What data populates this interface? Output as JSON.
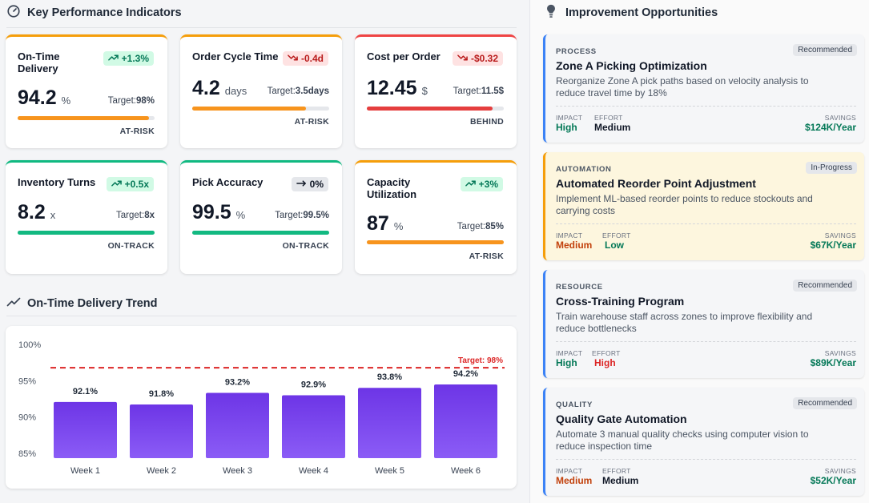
{
  "kpi_section": {
    "title": "Key Performance Indicators"
  },
  "kpis": [
    {
      "name": "On-Time Delivery",
      "badge": "+1.3%",
      "trend": "up",
      "value": "94.2",
      "unit": "%",
      "target_label": "Target:",
      "target": "98%",
      "status": "AT-RISK",
      "progress": 0.96,
      "color": "#f59e0b",
      "bar_color": "#f7941d"
    },
    {
      "name": "Order Cycle Time",
      "badge": "-0.4d",
      "trend": "down",
      "value": "4.2",
      "unit": "days",
      "target_label": "Target:",
      "target": "3.5days",
      "status": "AT-RISK",
      "progress": 0.83,
      "color": "#f59e0b",
      "bar_color": "#f7941d"
    },
    {
      "name": "Cost per Order",
      "badge": "-$0.32",
      "trend": "down",
      "value": "12.45",
      "unit": "$",
      "target_label": "Target:",
      "target": "11.5$",
      "status": "BEHIND",
      "progress": 0.92,
      "color": "#ef4444",
      "bar_color": "#e53e3e"
    },
    {
      "name": "Inventory Turns",
      "badge": "+0.5x",
      "trend": "up",
      "value": "8.2",
      "unit": "x",
      "target_label": "Target:",
      "target": "8x",
      "status": "ON-TRACK",
      "progress": 1.0,
      "color": "#10b981",
      "bar_color": "#12b981"
    },
    {
      "name": "Pick Accuracy",
      "badge": "0%",
      "trend": "flat",
      "value": "99.5",
      "unit": "%",
      "target_label": "Target:",
      "target": "99.5%",
      "status": "ON-TRACK",
      "progress": 1.0,
      "color": "#10b981",
      "bar_color": "#12b981"
    },
    {
      "name": "Capacity Utilization",
      "badge": "+3%",
      "trend": "up",
      "value": "87",
      "unit": "%",
      "target_label": "Target:",
      "target": "85%",
      "status": "AT-RISK",
      "progress": 1.0,
      "color": "#f59e0b",
      "bar_color": "#f7941d"
    }
  ],
  "trend_section": {
    "title": "On-Time Delivery Trend"
  },
  "chart_data": {
    "type": "bar",
    "title": "On-Time Delivery Trend",
    "categories": [
      "Week 1",
      "Week 2",
      "Week 3",
      "Week 4",
      "Week 5",
      "Week 6"
    ],
    "values": [
      92.1,
      91.8,
      93.2,
      92.9,
      93.8,
      94.2
    ],
    "value_labels": [
      "92.1%",
      "91.8%",
      "93.2%",
      "92.9%",
      "93.8%",
      "94.2%"
    ],
    "ylim": [
      85,
      100
    ],
    "yticks": [
      100,
      95,
      90,
      85
    ],
    "ytick_labels": [
      "100%",
      "95%",
      "90%",
      "85%"
    ],
    "target": 98,
    "target_label": "Target: 98%",
    "bar_color": "#7c3aed",
    "target_color": "#dc2626",
    "grid": false
  },
  "opportunities_section": {
    "title": "Improvement Opportunities"
  },
  "opportunities": [
    {
      "category": "PROCESS",
      "tag": "Recommended",
      "title": "Zone A Picking Optimization",
      "desc": "Reorganize Zone A pick paths based on velocity analysis to reduce travel time by 18%",
      "impact_label": "IMPACT",
      "impact": "High",
      "effort_label": "EFFORT",
      "effort": "Medium",
      "savings_label": "SAVINGS",
      "savings": "$124K/Year"
    },
    {
      "category": "AUTOMATION",
      "tag": "In-Progress",
      "title": "Automated Reorder Point Adjustment",
      "desc": "Implement ML-based reorder points to reduce stockouts and carrying costs",
      "impact_label": "IMPACT",
      "impact": "Medium",
      "effort_label": "EFFORT",
      "effort": "Low",
      "savings_label": "SAVINGS",
      "savings": "$67K/Year"
    },
    {
      "category": "RESOURCE",
      "tag": "Recommended",
      "title": "Cross-Training Program",
      "desc": "Train warehouse staff across zones to improve flexibility and reduce bottlenecks",
      "impact_label": "IMPACT",
      "impact": "High",
      "effort_label": "EFFORT",
      "effort": "High",
      "savings_label": "SAVINGS",
      "savings": "$89K/Year"
    },
    {
      "category": "QUALITY",
      "tag": "Recommended",
      "title": "Quality Gate Automation",
      "desc": "Automate 3 manual quality checks using computer vision to reduce inspection time",
      "impact_label": "IMPACT",
      "impact": "Medium",
      "effort_label": "EFFORT",
      "effort": "Medium",
      "savings_label": "SAVINGS",
      "savings": "$52K/Year"
    }
  ],
  "icons": {
    "kpi": "gauge-icon",
    "trend": "trend-line-icon",
    "opportunities": "lightbulb-icon"
  }
}
